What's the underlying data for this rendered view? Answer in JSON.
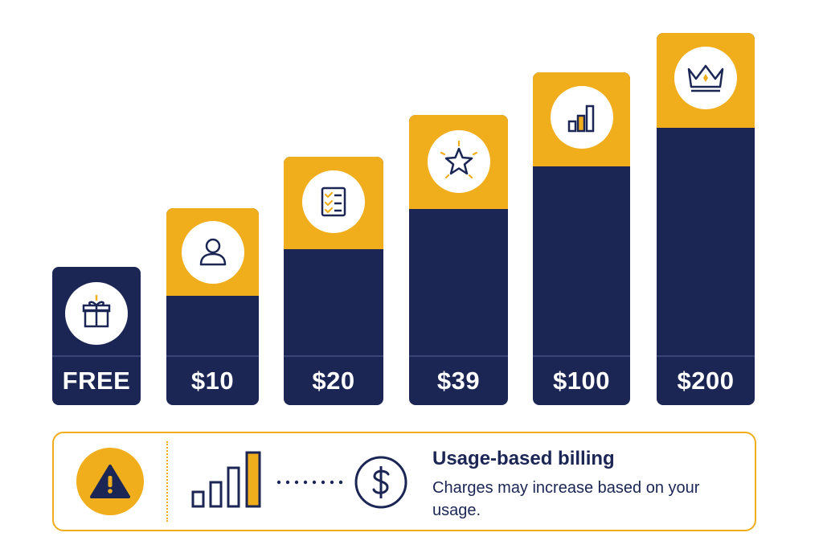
{
  "tiers": [
    {
      "price": "FREE",
      "icon": "gift-icon"
    },
    {
      "price": "$10",
      "icon": "user-icon"
    },
    {
      "price": "$20",
      "icon": "checklist-icon"
    },
    {
      "price": "$39",
      "icon": "star-icon"
    },
    {
      "price": "$100",
      "icon": "bar-chart-icon"
    },
    {
      "price": "$200",
      "icon": "crown-icon"
    }
  ],
  "notice": {
    "title": "Usage-based billing",
    "body": "Charges may increase based on your usage.",
    "icons": [
      "warning-icon",
      "usage-bars-icon",
      "dotted-connector",
      "dollar-icon"
    ]
  },
  "colors": {
    "navy": "#1b2655",
    "gold": "#f0ae1c",
    "white": "#ffffff"
  }
}
